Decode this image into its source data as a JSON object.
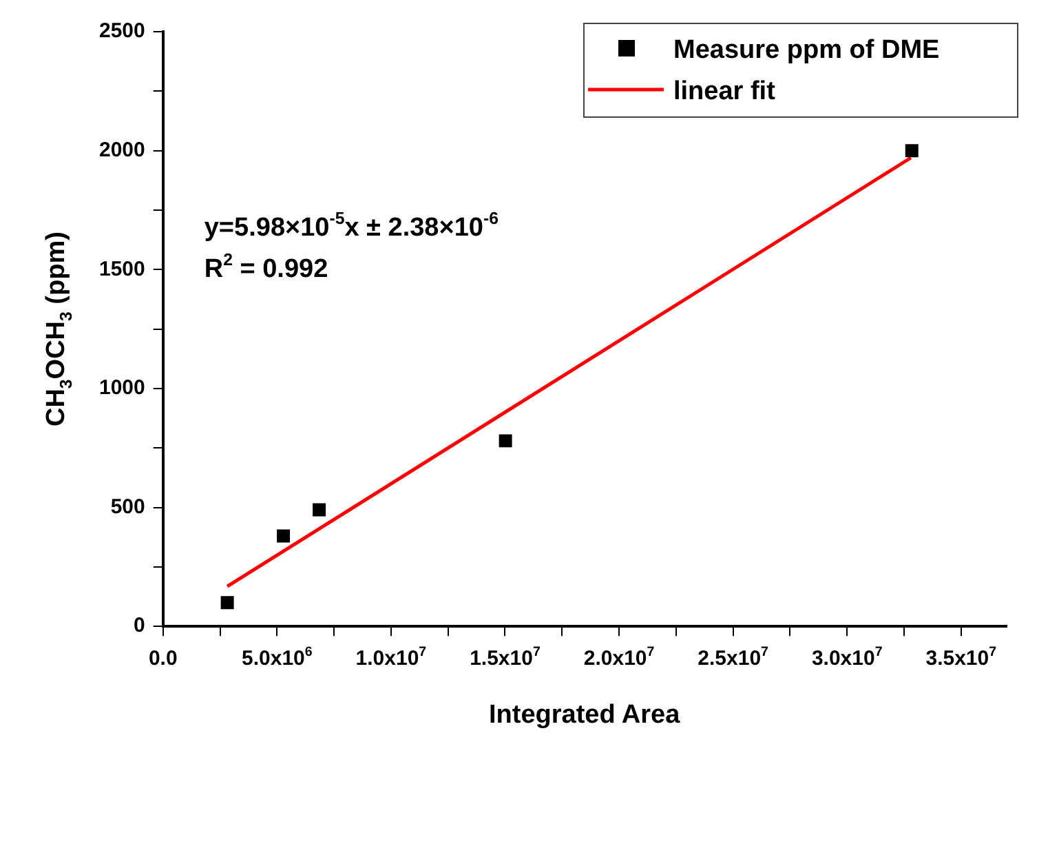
{
  "chart_data": {
    "type": "scatter",
    "xlabel": "Integrated Area",
    "ylabel": "CH$_{3}$OCH$_{3}$ (ppm)",
    "annotations": [
      "y=5.98×10$^{-5}$x ± 2.38×10$^{-6}$",
      "R$^{2}$ = 0.992"
    ],
    "series": [
      {
        "name": "Measure ppm of DME",
        "type": "scatter",
        "color": "#000000",
        "marker": "square",
        "x": [
          2820000,
          5280000,
          6850000,
          15020000,
          32840000
        ],
        "values": [
          100,
          380,
          490,
          780,
          2000
        ]
      },
      {
        "name": "linear fit",
        "type": "line",
        "color": "#ff0000",
        "marker": "none",
        "x": [
          2820000,
          32800000
        ],
        "values": [
          168,
          1970
        ]
      }
    ],
    "xlim": [
      0,
      37000000
    ],
    "xticks": [
      {
        "value": 0,
        "label": "0.0"
      },
      {
        "value": 2500000,
        "label": null
      },
      {
        "value": 5000000,
        "label": "5.0x10$^{6}$"
      },
      {
        "value": 7500000,
        "label": null
      },
      {
        "value": 10000000,
        "label": "1.0x10$^{7}$"
      },
      {
        "value": 12500000,
        "label": null
      },
      {
        "value": 15000000,
        "label": "1.5x10$^{7}$"
      },
      {
        "value": 17500000,
        "label": null
      },
      {
        "value": 20000000,
        "label": "2.0x10$^{7}$"
      },
      {
        "value": 22500000,
        "label": null
      },
      {
        "value": 25000000,
        "label": "2.5x10$^{7}$"
      },
      {
        "value": 27500000,
        "label": null
      },
      {
        "value": 30000000,
        "label": "3.0x10$^{7}$"
      },
      {
        "value": 32500000,
        "label": null
      },
      {
        "value": 35000000,
        "label": "3.5x10$^{7}$"
      }
    ],
    "ylim": [
      0,
      2500
    ],
    "yticks": [
      0,
      {
        "value": 250,
        "label": null
      },
      500,
      {
        "value": 750,
        "label": null
      },
      1000,
      {
        "value": 1250,
        "label": null
      },
      1500,
      {
        "value": 1750,
        "label": null
      },
      2000,
      {
        "value": 2250,
        "label": null
      },
      2500
    ],
    "grid": false,
    "legend": "top right"
  }
}
